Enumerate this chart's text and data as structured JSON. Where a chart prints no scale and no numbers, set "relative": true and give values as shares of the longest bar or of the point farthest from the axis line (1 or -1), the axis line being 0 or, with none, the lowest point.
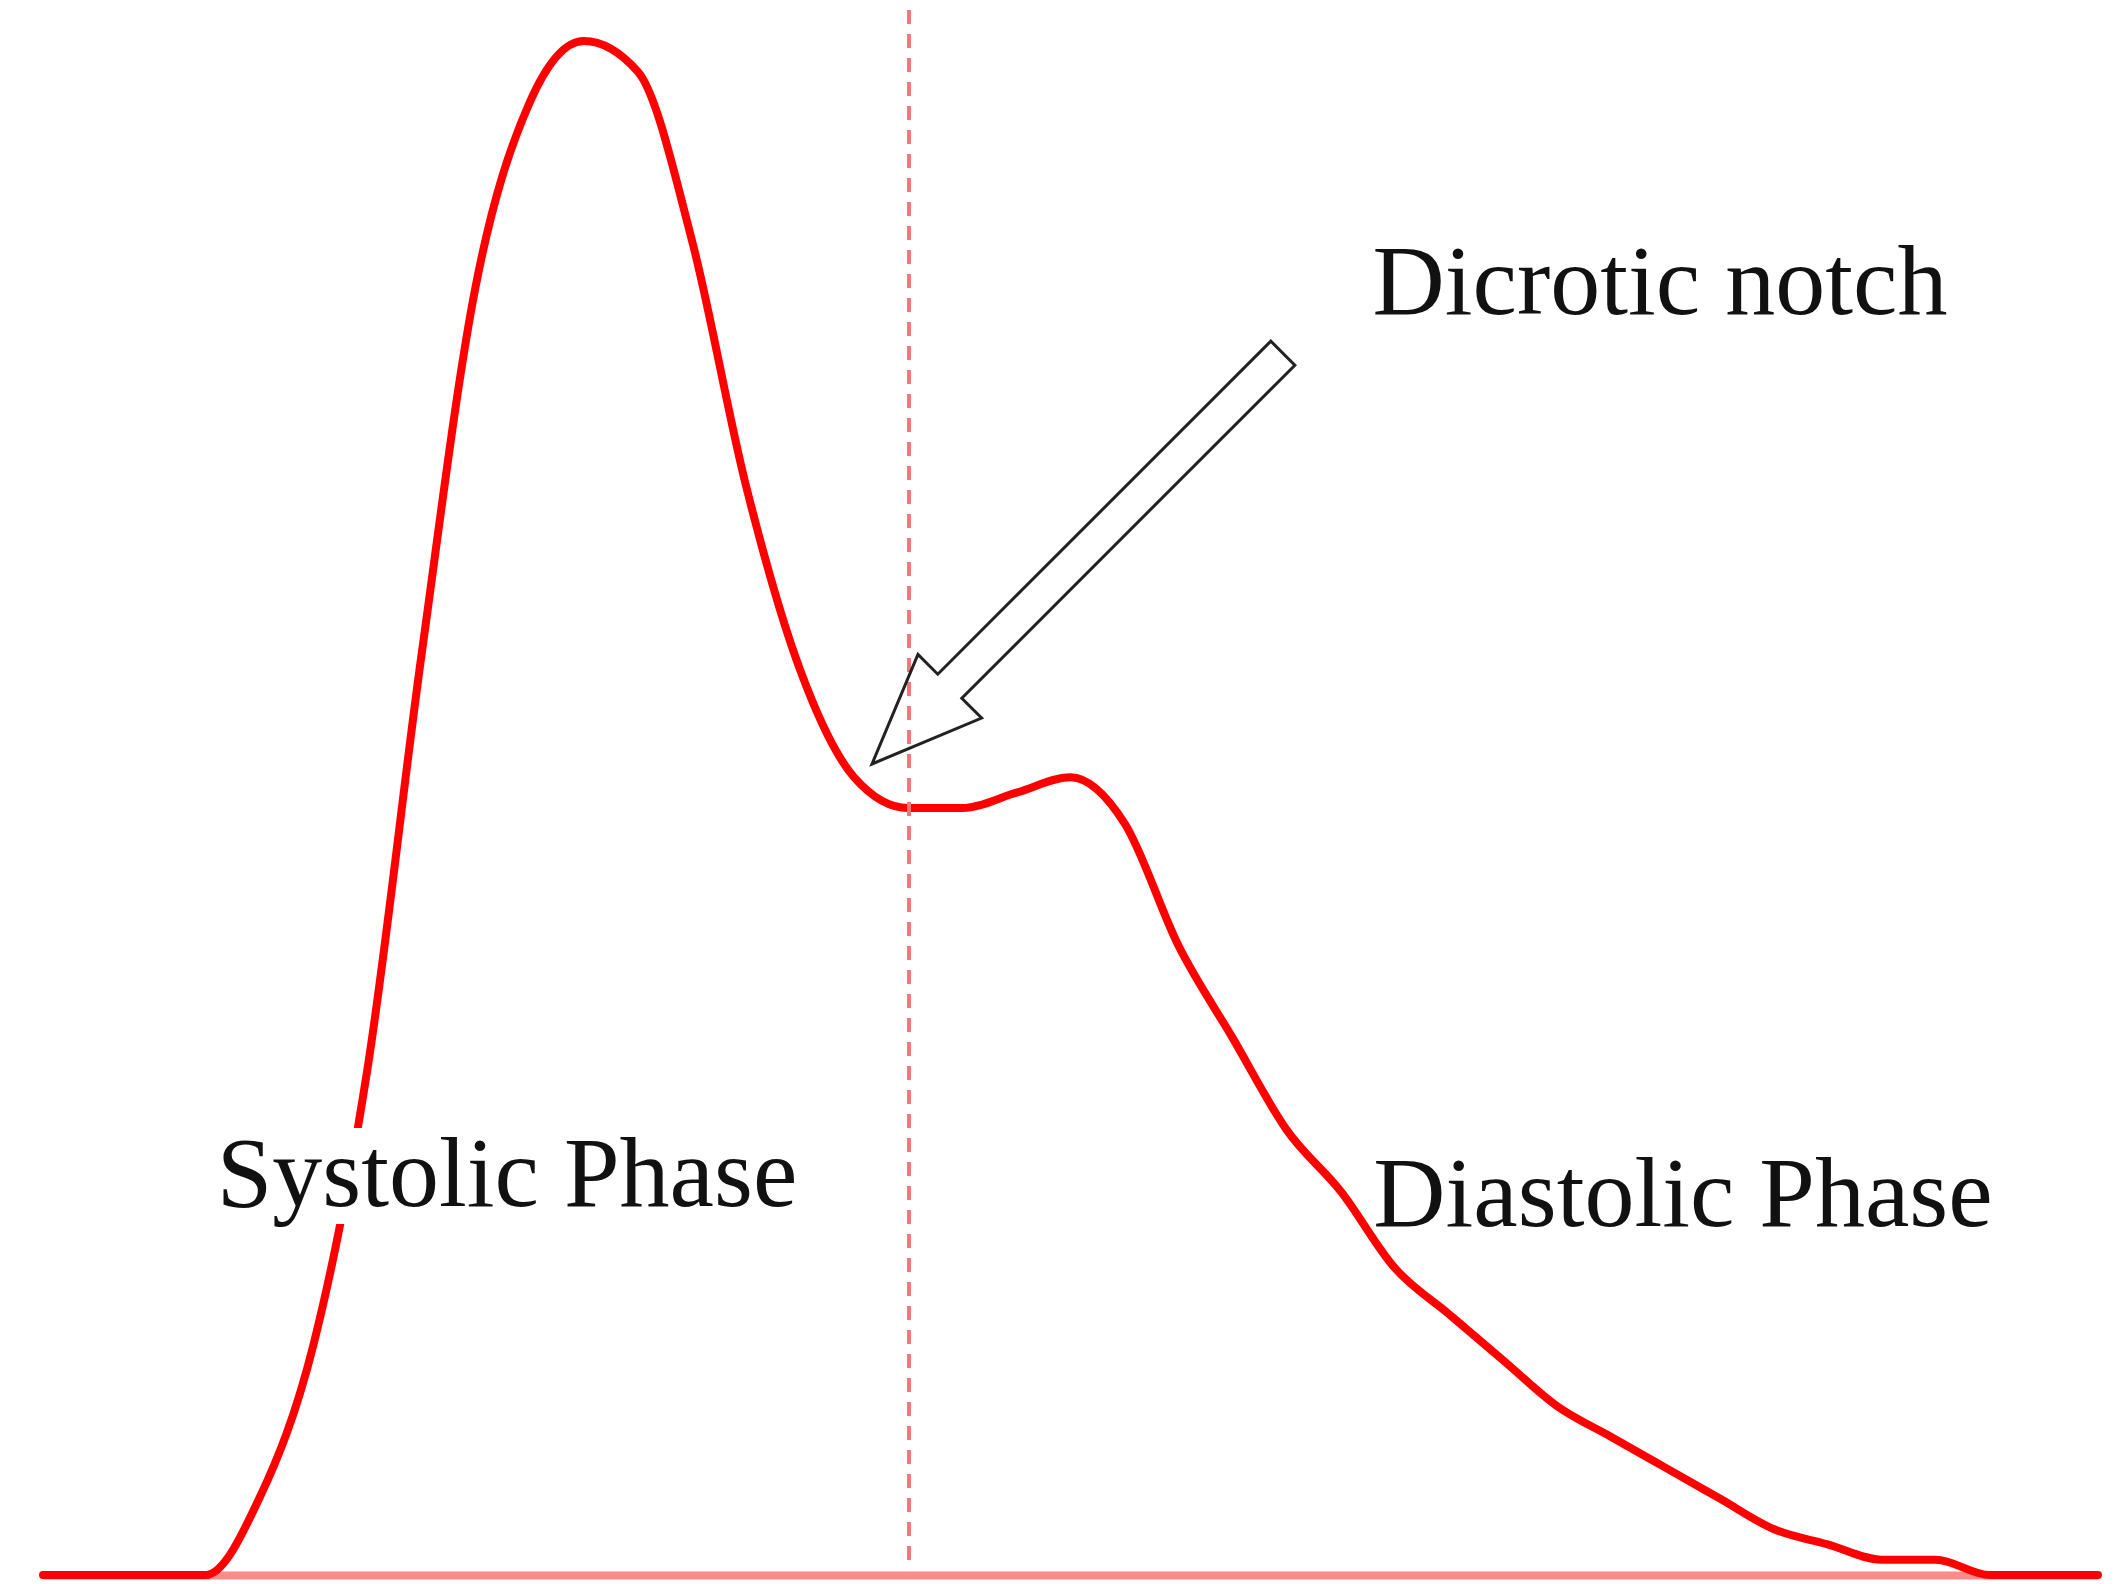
{
  "chart_data": {
    "type": "line",
    "relative": true,
    "categories": [
      null,
      null,
      null,
      null,
      null,
      null,
      null,
      null,
      null,
      null,
      null,
      null,
      null,
      null,
      null,
      null,
      null,
      null,
      null,
      null,
      null,
      null,
      null,
      null,
      null,
      null,
      null,
      null,
      null,
      null,
      null,
      null,
      null,
      null,
      null,
      null,
      null,
      null,
      null
    ],
    "series": [
      {
        "color": "#ff0000",
        "values": [
          0,
          0,
          0,
          0,
          0.05,
          0.15,
          0.33,
          0.6,
          0.84,
          0.96,
          1,
          0.98,
          0.87,
          0.71,
          0.59,
          0.52,
          0.5,
          0.5,
          0.51,
          0.52,
          0.49,
          0.41,
          0.35,
          0.29,
          0.25,
          0.2,
          0.17,
          0.14,
          0.11,
          0.09,
          0.07,
          0.05,
          0.03,
          0.02,
          0.01,
          0.01,
          0,
          0,
          0
        ]
      }
    ],
    "annotations": [
      "Dicrotic notch",
      "Systolic Phase",
      "Diastolic Phase"
    ]
  }
}
